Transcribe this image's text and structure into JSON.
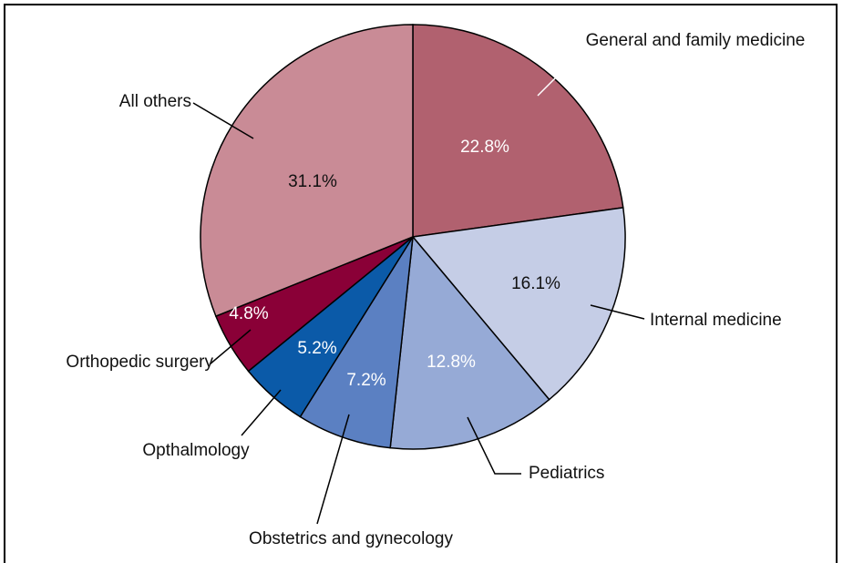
{
  "chart_data": {
    "type": "pie",
    "categories": [
      "General and family medicine",
      "Internal medicine",
      "Pediatrics",
      "Obstetrics and gynecology",
      "Opthalmology",
      "Orthopedic surgery",
      "All others"
    ],
    "values": [
      22.8,
      16.1,
      12.8,
      7.2,
      5.2,
      4.8,
      31.1
    ],
    "value_labels": [
      "22.8%",
      "16.1%",
      "12.8%",
      "7.2%",
      "5.2%",
      "4.8%",
      "31.1%"
    ],
    "colors": [
      "#b1616f",
      "#c5cde6",
      "#96aad6",
      "#5b80c2",
      "#0b5aa8",
      "#8a0037",
      "#c98b96"
    ]
  }
}
